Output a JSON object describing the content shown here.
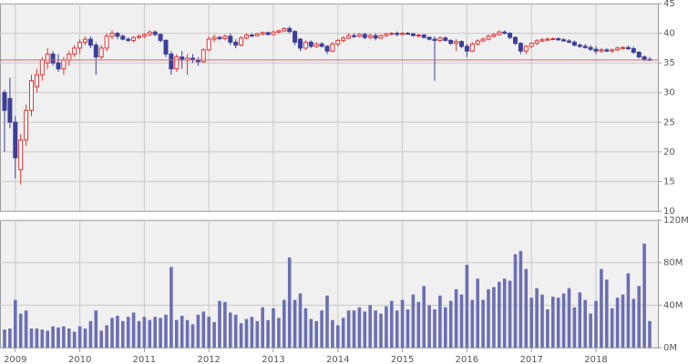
{
  "chart_data": [
    {
      "type": "candlestick",
      "up_color": "#e03030",
      "down_color": "#3c3f9a",
      "ylim": [
        10,
        45
      ],
      "yticks": [
        10,
        15,
        20,
        25,
        30,
        35,
        40,
        45
      ],
      "grid": true,
      "price_line": 35.5,
      "price_line_color": "#e06060",
      "ohlc": [
        [
          30,
          30.5,
          20,
          27
        ],
        [
          29,
          32.5,
          24,
          25
        ],
        [
          25,
          26,
          15.5,
          19
        ],
        [
          17,
          23,
          14.5,
          22
        ],
        [
          22,
          28,
          21,
          27
        ],
        [
          27,
          33,
          26,
          32
        ],
        [
          31,
          34,
          30,
          33
        ],
        [
          33,
          36,
          32,
          35.5
        ],
        [
          35,
          37.5,
          34,
          36.5
        ],
        [
          36.5,
          37,
          34.5,
          35
        ],
        [
          35,
          36.5,
          33.5,
          34
        ],
        [
          34,
          36,
          33,
          35.5
        ],
        [
          35.5,
          37,
          34.5,
          36.5
        ],
        [
          36.5,
          38,
          36,
          37.5
        ],
        [
          37.5,
          39,
          36.5,
          38.5
        ],
        [
          38.5,
          39.5,
          38,
          39
        ],
        [
          39,
          39.5,
          37.5,
          38
        ],
        [
          38,
          38.5,
          33,
          36
        ],
        [
          36,
          38,
          35.5,
          37.5
        ],
        [
          37.5,
          40,
          37,
          39.5
        ],
        [
          39.5,
          40.5,
          39,
          40
        ],
        [
          40,
          40.2,
          39,
          39.5
        ],
        [
          39.5,
          39.8,
          38.8,
          39
        ],
        [
          39,
          39.3,
          38.5,
          38.8
        ],
        [
          38.8,
          39.5,
          38.5,
          39.3
        ],
        [
          39.3,
          39.8,
          39,
          39.5
        ],
        [
          39.5,
          40,
          39.2,
          39.8
        ],
        [
          39.8,
          40.5,
          39.5,
          40.2
        ],
        [
          40.2,
          40.5,
          39.5,
          39.8
        ],
        [
          39.8,
          40,
          38.5,
          38.8
        ],
        [
          38.8,
          39,
          36,
          36.5
        ],
        [
          36.5,
          37,
          33,
          34
        ],
        [
          34,
          36.5,
          33.5,
          36
        ],
        [
          36,
          37,
          34,
          35.5
        ],
        [
          35.5,
          36.5,
          33,
          35.8
        ],
        [
          35.8,
          36.5,
          35,
          35.5
        ],
        [
          35.5,
          36,
          34.5,
          35.2
        ],
        [
          35.2,
          37.5,
          35,
          37.2
        ],
        [
          37.2,
          39.5,
          37,
          39
        ],
        [
          39,
          39.8,
          38.5,
          39.3
        ],
        [
          39.3,
          39.6,
          38.8,
          39.1
        ],
        [
          39.1,
          39.8,
          38.8,
          39.5
        ],
        [
          39.5,
          40,
          38,
          38.5
        ],
        [
          38.5,
          39,
          37.5,
          38
        ],
        [
          38,
          39.5,
          37.8,
          39.2
        ],
        [
          39.2,
          40,
          39,
          39.7
        ],
        [
          39.7,
          40,
          39.3,
          39.6
        ],
        [
          39.6,
          40.1,
          39.4,
          39.9
        ],
        [
          39.9,
          40.3,
          39.6,
          40.1
        ],
        [
          40.1,
          40.3,
          39.6,
          39.8
        ],
        [
          39.8,
          40.5,
          39.6,
          40.2
        ],
        [
          40.2,
          40.6,
          40,
          40.4
        ],
        [
          40.4,
          41,
          40.2,
          40.8
        ],
        [
          40.8,
          41.2,
          40,
          40.3
        ],
        [
          40.3,
          40.5,
          38,
          38.5
        ],
        [
          39,
          39.2,
          37,
          37.5
        ],
        [
          37.5,
          38.8,
          37.2,
          38.5
        ],
        [
          38.5,
          38.8,
          37.5,
          37.8
        ],
        [
          37.8,
          38.5,
          37.5,
          38.2
        ],
        [
          38.2,
          38.5,
          37.6,
          37.8
        ],
        [
          37.8,
          38,
          36.5,
          37
        ],
        [
          37,
          38.5,
          36.8,
          38.2
        ],
        [
          38.2,
          39,
          37.8,
          38.8
        ],
        [
          38.8,
          39.5,
          38.5,
          39.2
        ],
        [
          39.2,
          40,
          39,
          39.6
        ],
        [
          39.6,
          40,
          39.2,
          39.5
        ],
        [
          39.5,
          40,
          39.3,
          39.8
        ],
        [
          39.8,
          40.1,
          39,
          39.3
        ],
        [
          39.3,
          39.9,
          39,
          39.6
        ],
        [
          39.6,
          40,
          38.8,
          39.2
        ],
        [
          39.2,
          39.8,
          39,
          39.6
        ],
        [
          39.6,
          40.1,
          39.4,
          39.9
        ],
        [
          39.9,
          40.2,
          39.6,
          40
        ],
        [
          40,
          40.3,
          39.5,
          39.8
        ],
        [
          39.8,
          40.2,
          39.6,
          40
        ],
        [
          40,
          40.2,
          39.8,
          39.9
        ],
        [
          39.9,
          40.1,
          39.5,
          39.6
        ],
        [
          39.6,
          39.9,
          39.3,
          39.7
        ],
        [
          39.7,
          39.9,
          39.1,
          39.3
        ],
        [
          39.3,
          39.5,
          38.8,
          39
        ],
        [
          39,
          39.5,
          32,
          38.8
        ],
        [
          38.8,
          39.5,
          38.5,
          39.2
        ],
        [
          39.2,
          39.5,
          38.6,
          38.8
        ],
        [
          38.8,
          39,
          38,
          38.3
        ],
        [
          38.3,
          39,
          37,
          38.6
        ],
        [
          38.6,
          38.8,
          37.5,
          37.8
        ],
        [
          37.8,
          38.2,
          36,
          37
        ],
        [
          37,
          38.5,
          36.8,
          38.2
        ],
        [
          38.2,
          39,
          38,
          38.7
        ],
        [
          38.7,
          39.3,
          38.5,
          39
        ],
        [
          39,
          39.8,
          38.8,
          39.5
        ],
        [
          39.5,
          40,
          39.3,
          39.8
        ],
        [
          39.8,
          40.5,
          39.6,
          40.2
        ],
        [
          40.2,
          40.5,
          39.8,
          40
        ],
        [
          40,
          40.2,
          39,
          39.3
        ],
        [
          39.3,
          39.5,
          38,
          38.3
        ],
        [
          38.3,
          38.5,
          36.5,
          37
        ],
        [
          37,
          38,
          36.5,
          37.8
        ],
        [
          37.8,
          38.5,
          37.5,
          38.3
        ],
        [
          38.3,
          39,
          38,
          38.7
        ],
        [
          38.7,
          39.2,
          38.5,
          38.9
        ],
        [
          38.9,
          39.3,
          38.7,
          39
        ],
        [
          39,
          39.3,
          38.8,
          39.1
        ],
        [
          39.1,
          39.3,
          38.7,
          38.9
        ],
        [
          38.9,
          39.2,
          38.6,
          38.7
        ],
        [
          38.7,
          39,
          38.3,
          38.5
        ],
        [
          38.5,
          38.8,
          37.8,
          38
        ],
        [
          38,
          38.3,
          37.5,
          37.8
        ],
        [
          37.8,
          38.2,
          37.4,
          37.6
        ],
        [
          37.6,
          38,
          37,
          37.3
        ],
        [
          37.3,
          37.8,
          36.5,
          37
        ],
        [
          37,
          37.5,
          36.7,
          37.2
        ],
        [
          37.2,
          37.5,
          36.8,
          37
        ],
        [
          37,
          37.4,
          36.7,
          37.2
        ],
        [
          37.2,
          37.8,
          37,
          37.5
        ],
        [
          37.5,
          37.8,
          37.2,
          37.6
        ],
        [
          37.6,
          37.9,
          37.2,
          37.4
        ],
        [
          37.4,
          37.8,
          36.5,
          36.8
        ],
        [
          36.8,
          37,
          35.8,
          36
        ],
        [
          36,
          36.3,
          35.3,
          35.6
        ],
        [
          35.6,
          36,
          35.3,
          35.5
        ]
      ]
    },
    {
      "type": "bar",
      "color": "#6b70b3",
      "categories": [
        null,
        null,
        "2009",
        null,
        null,
        null,
        null,
        null,
        null,
        null,
        null,
        null,
        null,
        null,
        "2010",
        null,
        null,
        null,
        null,
        null,
        null,
        null,
        null,
        null,
        null,
        null,
        "2011",
        null,
        null,
        null,
        null,
        null,
        null,
        null,
        null,
        null,
        null,
        null,
        "2012",
        null,
        null,
        null,
        null,
        null,
        null,
        null,
        null,
        null,
        null,
        null,
        "2013",
        null,
        null,
        null,
        null,
        null,
        null,
        null,
        null,
        null,
        null,
        null,
        "2014",
        null,
        null,
        null,
        null,
        null,
        null,
        null,
        null,
        null,
        null,
        null,
        "2015",
        null,
        null,
        null,
        null,
        null,
        null,
        null,
        null,
        null,
        null,
        null,
        "2016",
        null,
        null,
        null,
        null,
        null,
        null,
        null,
        null,
        null,
        null,
        null,
        "2017",
        null,
        null,
        null,
        null,
        null,
        null,
        null,
        null,
        null,
        null,
        null,
        "2018",
        null,
        null,
        null,
        null,
        null,
        null,
        null,
        null,
        null,
        null
      ],
      "values": [
        17,
        18,
        45,
        32,
        35,
        18,
        18,
        17,
        16,
        20,
        19,
        20,
        18,
        15,
        20,
        18,
        25,
        35,
        16,
        21,
        28,
        30,
        25,
        29,
        33,
        25,
        29,
        26,
        29,
        28,
        31,
        76,
        26,
        30,
        26,
        22,
        31,
        34,
        29,
        24,
        44,
        43,
        33,
        31,
        23,
        27,
        29,
        25,
        38,
        26,
        37,
        28,
        45,
        85,
        45,
        51,
        37,
        27,
        25,
        35,
        49,
        26,
        21,
        28,
        35,
        35,
        38,
        34,
        40,
        35,
        32,
        39,
        44,
        35,
        45,
        36,
        50,
        43,
        58,
        40,
        36,
        49,
        38,
        44,
        55,
        50,
        78,
        45,
        65,
        45,
        55,
        57,
        62,
        65,
        63,
        88,
        91,
        74,
        47,
        56,
        50,
        36,
        48,
        47,
        51,
        56,
        38,
        52,
        45,
        32,
        44,
        74,
        64,
        37,
        47,
        50,
        70,
        46,
        58,
        98,
        25
      ],
      "ylim": [
        0,
        120
      ],
      "yticks": [
        {
          "value": 0,
          "label": "0M"
        },
        {
          "value": 40,
          "label": "40M"
        },
        {
          "value": 80,
          "label": "80M"
        },
        {
          "value": 120,
          "label": "120M"
        }
      ],
      "grid": true
    }
  ]
}
